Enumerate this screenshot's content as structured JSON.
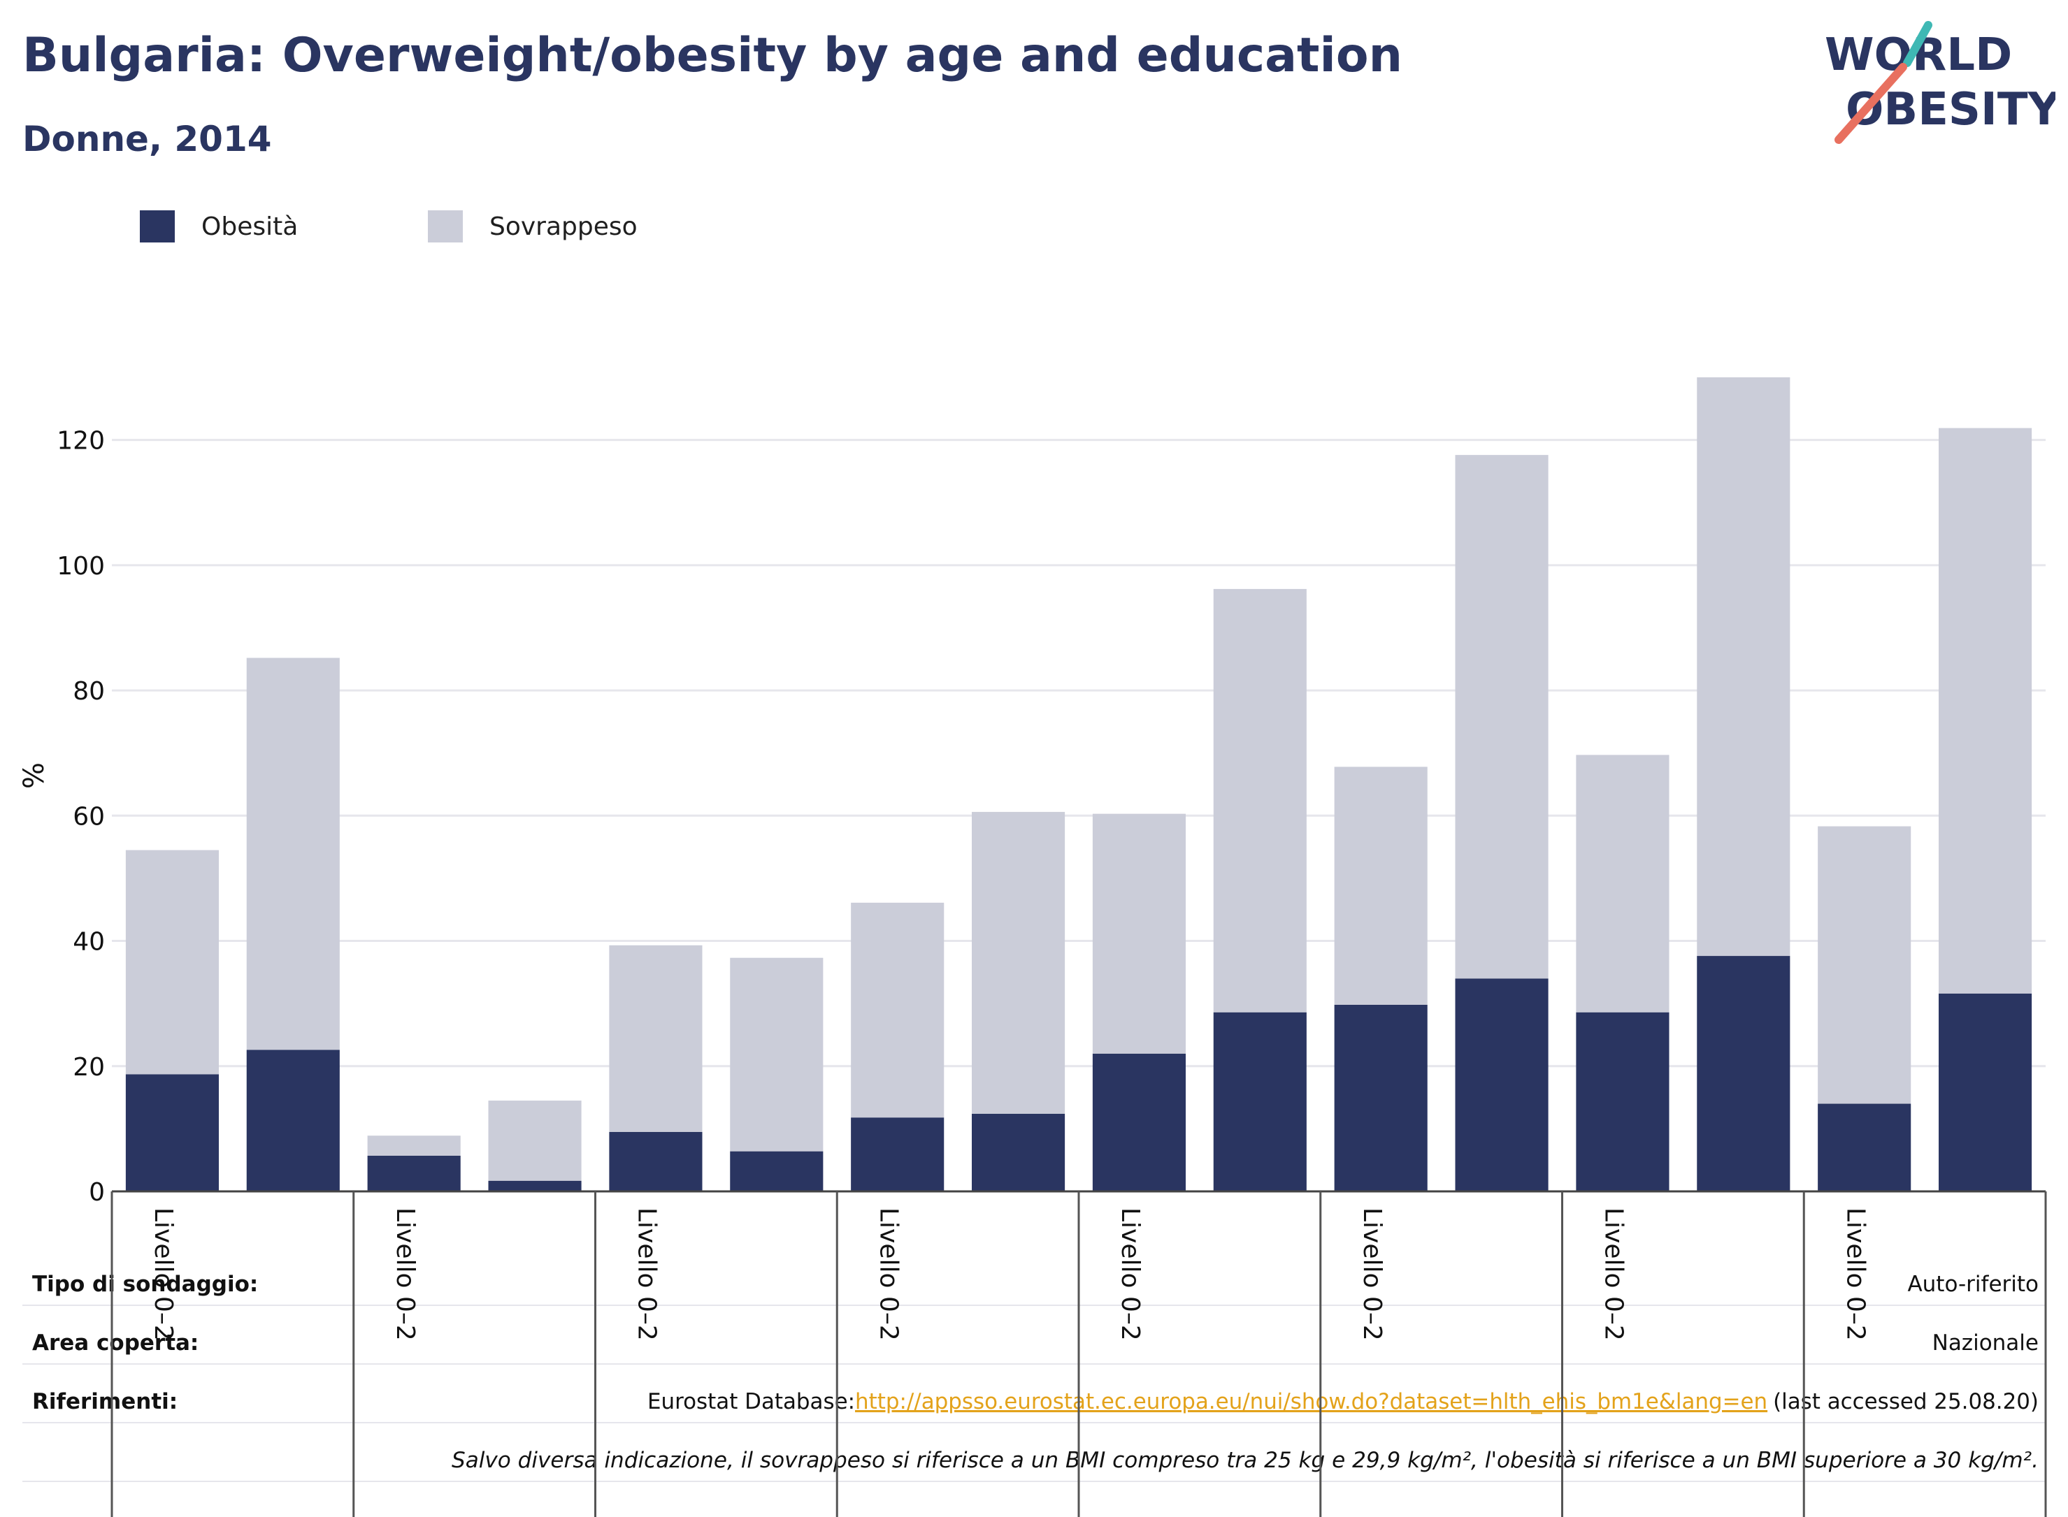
{
  "header": {
    "title": "Bulgaria: Overweight/obesity by age and education",
    "subtitle": "Donne, 2014"
  },
  "logo": {
    "line1": "WORLD",
    "line2": "OBESITY"
  },
  "colors": {
    "obesity": "#2a3561",
    "overweight": "#cbcdd9",
    "title": "#2a3561",
    "grid": "#e6e6ec",
    "link": "#e3a21a",
    "logo_teal": "#3fb8b4",
    "logo_coral": "#e8705f"
  },
  "chart_data": {
    "type": "bar",
    "stacked": true,
    "ylabel": "%",
    "ylim": [
      0,
      130
    ],
    "yticks": [
      0,
      20,
      40,
      60,
      80,
      100,
      120
    ],
    "grid": true,
    "legend_position": "top-left",
    "series": [
      {
        "name": "Obesità",
        "color": "#2a3561",
        "values": [
          18.7,
          22.6,
          5.7,
          1.7,
          9.5,
          6.4,
          11.8,
          12.4,
          22.0,
          28.6,
          29.8,
          34.0,
          28.6,
          37.6,
          14.0,
          31.6
        ]
      },
      {
        "name": "Sovrappeso",
        "color": "#cbcdd9",
        "values": [
          35.8,
          62.6,
          3.2,
          12.8,
          29.8,
          30.9,
          34.3,
          48.2,
          38.3,
          67.6,
          38.0,
          83.6,
          41.1,
          92.4,
          44.3,
          90.3
        ]
      }
    ],
    "groups": [
      {
        "label": "Livello 0–2",
        "bars": 2
      },
      {
        "label": "Livello 0–2",
        "bars": 2
      },
      {
        "label": "Livello 0–2",
        "bars": 2
      },
      {
        "label": "Livello 0–2",
        "bars": 2
      },
      {
        "label": "Livello 0–2",
        "bars": 2
      },
      {
        "label": "Livello 0–2",
        "bars": 2
      },
      {
        "label": "Livello 0–2",
        "bars": 2
      },
      {
        "label": "Livello 0–2",
        "bars": 2
      }
    ]
  },
  "info": {
    "survey_label": "Tipo di sondaggio:",
    "survey_value": "Auto-riferito",
    "area_label": "Area coperta:",
    "area_value": "Nazionale",
    "refs_label": "Riferimenti:",
    "refs_prefix": "Eurostat Database:",
    "refs_link": "http://appsso.eurostat.ec.europa.eu/nui/show.do?dataset=hlth_ehis_bm1e&lang=en",
    "refs_suffix": "(last accessed 25.08.20)",
    "note": "Salvo diversa indicazione, il sovrappeso si riferisce a un BMI compreso tra 25 kg e 29,9 kg/m², l'obesità si riferisce a un BMI superiore a 30 kg/m²."
  }
}
